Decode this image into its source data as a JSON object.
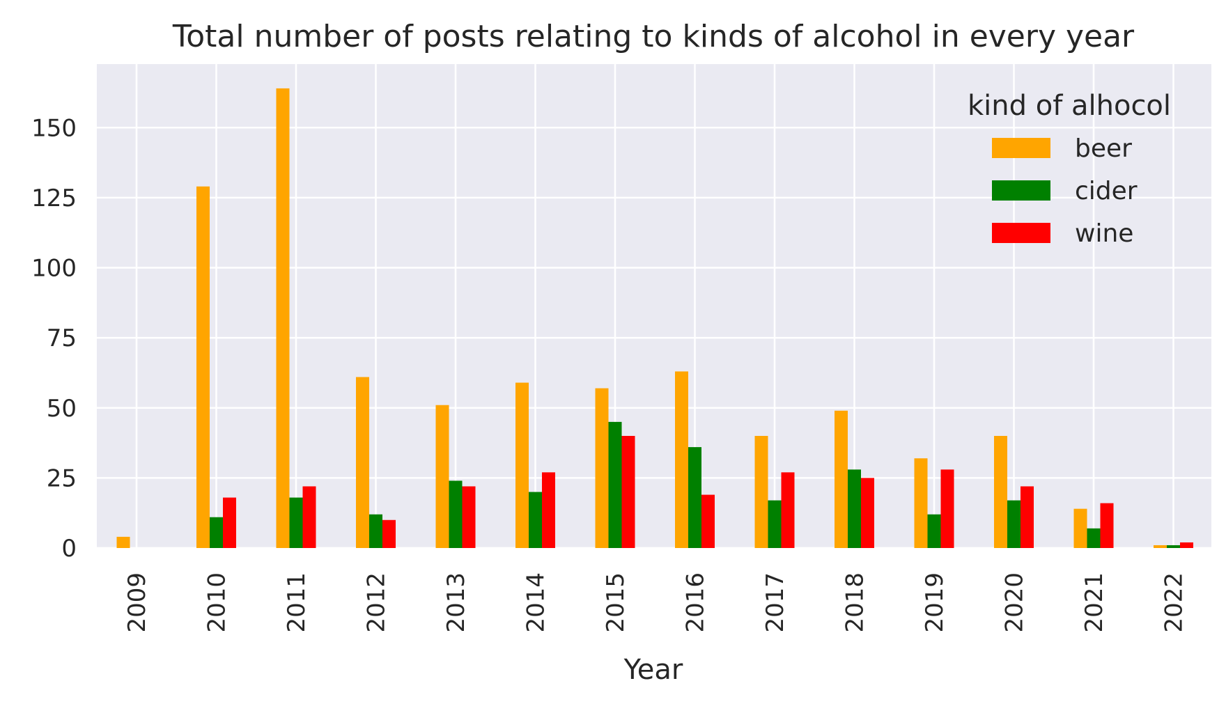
{
  "chart_data": {
    "type": "bar",
    "title": "Total number of posts relating to kinds of alcohol in every year",
    "xlabel": "Year",
    "ylabel": "",
    "ylim": [
      0,
      170
    ],
    "yticks": [
      0,
      25,
      50,
      75,
      100,
      125,
      150
    ],
    "grid": true,
    "legend": {
      "title": "kind of alhocol",
      "position": "top-right"
    },
    "categories": [
      "2009",
      "2010",
      "2011",
      "2012",
      "2013",
      "2014",
      "2015",
      "2016",
      "2017",
      "2018",
      "2019",
      "2020",
      "2021",
      "2022"
    ],
    "series": [
      {
        "name": "beer",
        "color": "#ffa500",
        "values": [
          4,
          129,
          164,
          61,
          51,
          59,
          57,
          63,
          40,
          49,
          32,
          40,
          14,
          1
        ]
      },
      {
        "name": "cider",
        "color": "#008000",
        "values": [
          0,
          11,
          18,
          12,
          24,
          20,
          45,
          36,
          17,
          28,
          12,
          17,
          7,
          1
        ]
      },
      {
        "name": "wine",
        "color": "#ff0000",
        "values": [
          0,
          18,
          22,
          10,
          22,
          27,
          40,
          19,
          27,
          25,
          28,
          22,
          16,
          2
        ]
      }
    ]
  }
}
